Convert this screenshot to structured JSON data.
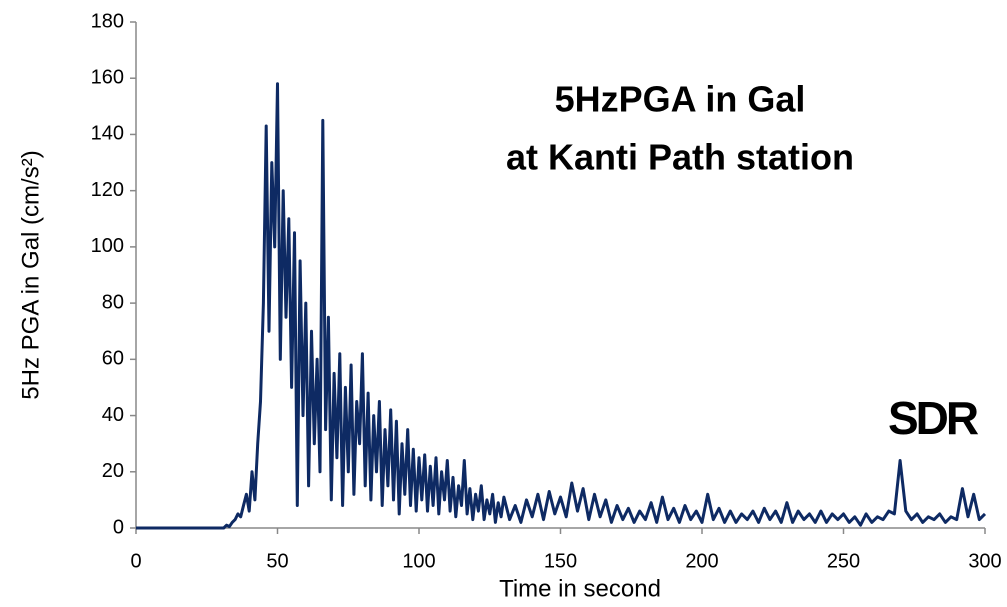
{
  "chart_data": {
    "type": "line",
    "title": "5HzPGA in Gal",
    "subtitle": "at Kanti Path station",
    "xlabel": "Time in second",
    "ylabel": "5Hz PGA in Gal (cm/s²)",
    "logo": "SDR",
    "color": "#0e2a63",
    "x": [
      0,
      10,
      20,
      30,
      31,
      32,
      33,
      34,
      35,
      36,
      37,
      38,
      39,
      40,
      41,
      42,
      43,
      44,
      45,
      46,
      47,
      48,
      49,
      50,
      51,
      52,
      53,
      54,
      55,
      56,
      57,
      58,
      59,
      60,
      61,
      62,
      63,
      64,
      65,
      66,
      67,
      68,
      69,
      70,
      71,
      72,
      73,
      74,
      75,
      76,
      77,
      78,
      79,
      80,
      81,
      82,
      83,
      84,
      85,
      86,
      87,
      88,
      89,
      90,
      91,
      92,
      93,
      94,
      95,
      96,
      97,
      98,
      99,
      100,
      101,
      102,
      103,
      104,
      105,
      106,
      107,
      108,
      109,
      110,
      111,
      112,
      113,
      114,
      115,
      116,
      117,
      118,
      119,
      120,
      121,
      122,
      123,
      124,
      125,
      126,
      127,
      128,
      129,
      130,
      132,
      134,
      136,
      138,
      140,
      142,
      144,
      146,
      148,
      150,
      152,
      154,
      156,
      158,
      160,
      162,
      164,
      166,
      168,
      170,
      172,
      174,
      176,
      178,
      180,
      182,
      184,
      186,
      188,
      190,
      192,
      194,
      196,
      198,
      200,
      202,
      204,
      206,
      208,
      210,
      212,
      214,
      216,
      218,
      220,
      222,
      224,
      226,
      228,
      230,
      232,
      234,
      236,
      238,
      240,
      242,
      244,
      246,
      248,
      250,
      252,
      254,
      256,
      258,
      260,
      262,
      264,
      266,
      268,
      270,
      272,
      274,
      276,
      278,
      280,
      282,
      284,
      286,
      288,
      290,
      292,
      294,
      296,
      298,
      300
    ],
    "values": [
      0,
      0,
      0,
      0,
      0,
      1,
      0.5,
      2,
      3,
      5,
      4,
      8,
      12,
      6,
      20,
      10,
      30,
      45,
      80,
      143,
      70,
      130,
      100,
      158,
      60,
      120,
      75,
      110,
      50,
      105,
      8,
      95,
      40,
      80,
      15,
      70,
      30,
      60,
      20,
      145,
      35,
      75,
      10,
      55,
      25,
      62,
      8,
      50,
      20,
      58,
      12,
      45,
      30,
      62,
      15,
      48,
      10,
      40,
      20,
      45,
      8,
      35,
      15,
      42,
      10,
      38,
      5,
      30,
      12,
      35,
      8,
      28,
      6,
      25,
      10,
      26,
      6,
      22,
      8,
      25,
      5,
      20,
      10,
      24,
      6,
      18,
      4,
      15,
      8,
      24,
      5,
      14,
      3,
      12,
      6,
      15,
      3,
      10,
      5,
      12,
      2,
      9,
      4,
      11,
      3,
      8,
      2,
      10,
      4,
      12,
      3,
      13,
      5,
      11,
      4,
      16,
      6,
      14,
      3,
      12,
      4,
      10,
      2,
      8,
      3,
      7,
      2,
      6,
      3,
      9,
      2,
      11,
      3,
      7,
      2,
      8,
      3,
      6,
      2,
      12,
      3,
      7,
      2,
      6,
      2,
      5,
      3,
      6,
      2,
      7,
      3,
      6,
      2,
      9,
      2,
      6,
      3,
      5,
      2,
      6,
      2,
      5,
      3,
      5,
      2,
      4,
      1,
      5,
      2,
      4,
      3,
      6,
      5,
      24,
      6,
      3,
      5,
      2,
      4,
      3,
      5,
      2,
      4,
      3,
      14,
      4,
      12,
      3,
      5
    ],
    "xlim": [
      0,
      300
    ],
    "xticks": [
      0,
      50,
      100,
      150,
      200,
      250,
      300
    ],
    "ylim": [
      0,
      180
    ],
    "yticks": [
      0,
      20,
      40,
      60,
      80,
      100,
      120,
      140,
      160,
      180
    ],
    "grid": false
  }
}
